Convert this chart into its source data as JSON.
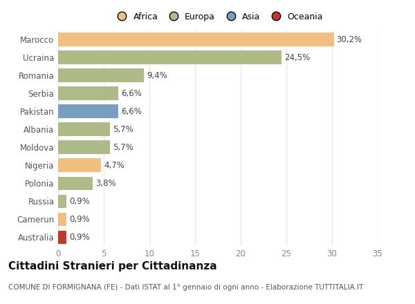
{
  "countries": [
    "Marocco",
    "Ucraina",
    "Romania",
    "Serbia",
    "Pakistan",
    "Albania",
    "Moldova",
    "Nigeria",
    "Polonia",
    "Russia",
    "Camerun",
    "Australia"
  ],
  "values": [
    30.2,
    24.5,
    9.4,
    6.6,
    6.6,
    5.7,
    5.7,
    4.7,
    3.8,
    0.9,
    0.9,
    0.9
  ],
  "labels": [
    "30,2%",
    "24,5%",
    "9,4%",
    "6,6%",
    "6,6%",
    "5,7%",
    "5,7%",
    "4,7%",
    "3,8%",
    "0,9%",
    "0,9%",
    "0,9%"
  ],
  "colors": [
    "#F2BF82",
    "#AEBA87",
    "#AEBA87",
    "#AEBA87",
    "#7A9EBF",
    "#AEBA87",
    "#AEBA87",
    "#F2BF82",
    "#AEBA87",
    "#AEBA87",
    "#F2BF82",
    "#C0392B"
  ],
  "legend_labels": [
    "Africa",
    "Europa",
    "Asia",
    "Oceania"
  ],
  "legend_colors": [
    "#F2BF82",
    "#AEBA87",
    "#7A9EBF",
    "#C0392B"
  ],
  "title": "Cittadini Stranieri per Cittadinanza",
  "subtitle": "COMUNE DI FORMIGNANA (FE) - Dati ISTAT al 1° gennaio di ogni anno - Elaborazione TUTTITALIA.IT",
  "xlim": [
    0,
    35
  ],
  "xticks": [
    0,
    5,
    10,
    15,
    20,
    25,
    30,
    35
  ],
  "bg_color": "#ffffff",
  "grid_color": "#e8e8e8",
  "label_fontsize": 8.5,
  "ytick_fontsize": 8.5,
  "xtick_fontsize": 8.5,
  "title_fontsize": 11,
  "subtitle_fontsize": 7.5,
  "bar_height": 0.75
}
